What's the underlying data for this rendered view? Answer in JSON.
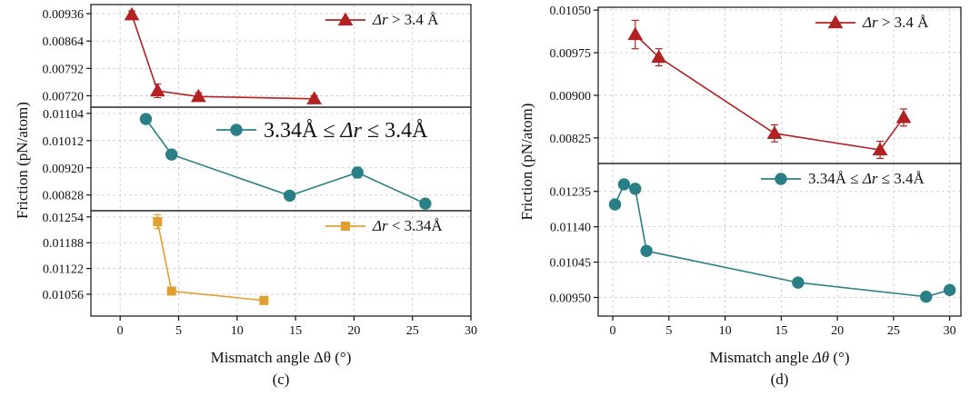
{
  "chart_data": [
    {
      "type": "line",
      "panel_label": "(c)",
      "ylabel": "Friction (pN/atom)",
      "xlabel": {
        "prefix": "Mismatch angle Δθ (°)",
        "italic": "",
        "suffix": ""
      },
      "xlim": [
        -2.5,
        30
      ],
      "xticks": [
        "0",
        "5",
        "10",
        "15",
        "20",
        "25",
        "30"
      ],
      "grid": true,
      "subplots": [
        {
          "name": "Δr > 3.4 Å",
          "legend": {
            "italic": "Δr",
            "text": " > 3.4 Å"
          },
          "legend_placement": "top-right",
          "marker": "triangle",
          "color": "#b22222",
          "ylim": [
            0.0069,
            0.0096
          ],
          "yticks": [
            "0.00720",
            "0.00792",
            "0.00864",
            "0.00936"
          ],
          "x": [
            1.0,
            3.2,
            6.7,
            16.6
          ],
          "y": [
            0.00933,
            0.00733,
            0.00718,
            0.00712
          ],
          "err": [
            0.0001,
            0.00018,
            0.0001,
            8e-05
          ]
        },
        {
          "name": "3.34Å ≤ Δr ≤ 3.4Å",
          "legend": {
            "pre": "3.34Å ≤ ",
            "italic": "Δr",
            "text": " ≤ 3.4Å"
          },
          "legend_placement": "top-right",
          "legend_big": true,
          "marker": "circle",
          "color": "#2a7f86",
          "ylim": [
            0.00775,
            0.01125
          ],
          "yticks": [
            "0.00828",
            "0.00920",
            "0.01012",
            "0.01104"
          ],
          "x": [
            2.2,
            4.4,
            14.5,
            20.3,
            26.1
          ],
          "y": [
            0.01085,
            0.00965,
            0.00826,
            0.00904,
            0.00799
          ],
          "err": [
            0.00015,
            0.0001,
            0.00012,
            0.00018,
            0.00015
          ]
        },
        {
          "name": "Δr < 3.34Å",
          "legend": {
            "italic": "Δr",
            "text": " < 3.34Å"
          },
          "legend_placement": "top-right",
          "marker": "square",
          "color": "#e0a030",
          "ylim": [
            0.01,
            0.0127
          ],
          "yticks": [
            "0.01056",
            "0.01122",
            "0.01188",
            "0.01254"
          ],
          "x": [
            3.2,
            4.4,
            12.3
          ],
          "y": [
            0.01242,
            0.01064,
            0.0104
          ],
          "err": [
            0.00018,
            0.0001,
            0.0001
          ]
        }
      ]
    },
    {
      "type": "line",
      "panel_label": "(d)",
      "ylabel": "Friction (pN/atom)",
      "xlabel": {
        "prefix": "Mismatch angle ",
        "italic": "Δθ",
        "suffix": " (°)"
      },
      "xlim": [
        -1.3,
        31
      ],
      "xticks": [
        "0",
        "5",
        "10",
        "15",
        "20",
        "25",
        "30"
      ],
      "grid": true,
      "subplots": [
        {
          "name": "Δr > 3.4 Å",
          "legend": {
            "italic": "Δr",
            "text": " > 3.4 Å"
          },
          "legend_placement": "top-right",
          "marker": "triangle",
          "color": "#b22222",
          "ylim": [
            0.0078,
            0.01055
          ],
          "yticks": [
            "0.00825",
            "0.00900",
            "0.00975",
            "0.01050"
          ],
          "x": [
            2.0,
            4.1,
            14.4,
            23.8,
            25.9
          ],
          "y": [
            0.01007,
            0.00967,
            0.00833,
            0.00804,
            0.00861
          ],
          "err": [
            0.00025,
            0.00015,
            0.00015,
            0.00015,
            0.00015
          ]
        },
        {
          "name": "3.34Å ≤ Δr ≤ 3.4Å",
          "legend": {
            "pre": "3.34Å ≤ ",
            "italic": "Δr",
            "text": " ≤ 3.4Å"
          },
          "legend_placement": "top-right",
          "marker": "circle",
          "color": "#2a7f86",
          "ylim": [
            0.009,
            0.0131
          ],
          "yticks": [
            "0.00950",
            "0.01045",
            "0.01140",
            "0.01235"
          ],
          "x": [
            0.2,
            1.0,
            2.0,
            3.0,
            16.5,
            27.9,
            30.0
          ],
          "y": [
            0.012,
            0.01254,
            0.01242,
            0.01075,
            0.0099,
            0.00952,
            0.0097
          ],
          "err": [
            0.00012,
            8e-05,
            0.00012,
            0.00012,
            0.0001,
            0.00012,
            0.00012
          ]
        }
      ]
    }
  ]
}
